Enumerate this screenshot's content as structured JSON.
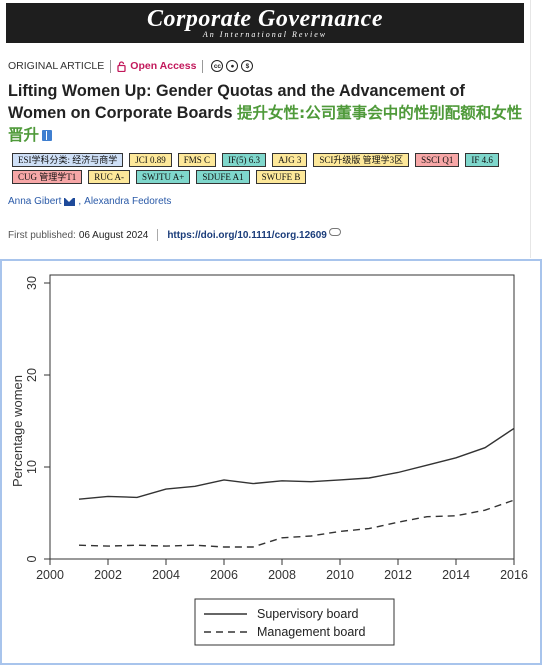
{
  "journal": {
    "title": "Corporate Governance",
    "subtitle": "An International Review"
  },
  "article": {
    "type": "ORIGINAL ARTICLE",
    "access": "Open Access",
    "license_icons": [
      "cc",
      "by",
      "nc"
    ],
    "title": "Lifting Women Up: Gender Quotas and the Advancement of Women on Corporate Boards",
    "title_zh": "提升女性:公司董事会中的性别配额和女性晋升",
    "badges": [
      {
        "text": "ESI学科分类: 经济与商学",
        "color": "#cfe0f7"
      },
      {
        "text": "JCI 0.89",
        "color": "#fde89a"
      },
      {
        "text": "FMS C",
        "color": "#fde89a"
      },
      {
        "text": "IF(5) 6.3",
        "color": "#7fd7cc"
      },
      {
        "text": "AJG 3",
        "color": "#fde89a"
      },
      {
        "text": "SCI升级版 管理学3区",
        "color": "#fde89a"
      },
      {
        "text": "SSCI Q1",
        "color": "#f7a7a7"
      },
      {
        "text": "IF 4.6",
        "color": "#7fd7cc"
      },
      {
        "text": "CUG 管理学T1",
        "color": "#f7a7a7"
      },
      {
        "text": "RUC A-",
        "color": "#fde89a"
      },
      {
        "text": "SWJTU A+",
        "color": "#7fd7cc"
      },
      {
        "text": "SDUFE A1",
        "color": "#7fd7cc"
      },
      {
        "text": "SWUFE B",
        "color": "#fde89a"
      }
    ],
    "authors": [
      "Anna Gibert",
      "Alexandra Fedorets"
    ],
    "published_label": "First published:",
    "published_date": "06 August 2024",
    "doi": "https://doi.org/10.1111/corg.12609"
  },
  "chart_data": {
    "type": "line",
    "title": "",
    "xlabel": "",
    "ylabel": "Percentage women",
    "xlim": [
      2000,
      2016
    ],
    "ylim": [
      0,
      30
    ],
    "xticks": [
      2000,
      2002,
      2004,
      2006,
      2008,
      2010,
      2012,
      2014,
      2016
    ],
    "yticks": [
      0,
      10,
      20,
      30
    ],
    "x": [
      2001,
      2002,
      2003,
      2004,
      2005,
      2006,
      2007,
      2008,
      2009,
      2010,
      2011,
      2012,
      2013,
      2014,
      2015,
      2016
    ],
    "series": [
      {
        "name": "Supervisory board",
        "style": "solid",
        "values": [
          6.5,
          6.8,
          6.7,
          7.6,
          7.9,
          8.6,
          8.2,
          8.5,
          8.4,
          8.6,
          8.8,
          9.4,
          10.2,
          11.0,
          12.1,
          14.2
        ]
      },
      {
        "name": "Management board",
        "style": "dashed",
        "values": [
          1.5,
          1.4,
          1.5,
          1.4,
          1.5,
          1.3,
          1.3,
          2.3,
          2.5,
          3.0,
          3.3,
          4.0,
          4.6,
          4.7,
          5.3,
          6.4
        ]
      }
    ],
    "grid": false,
    "legend": "bottom"
  }
}
